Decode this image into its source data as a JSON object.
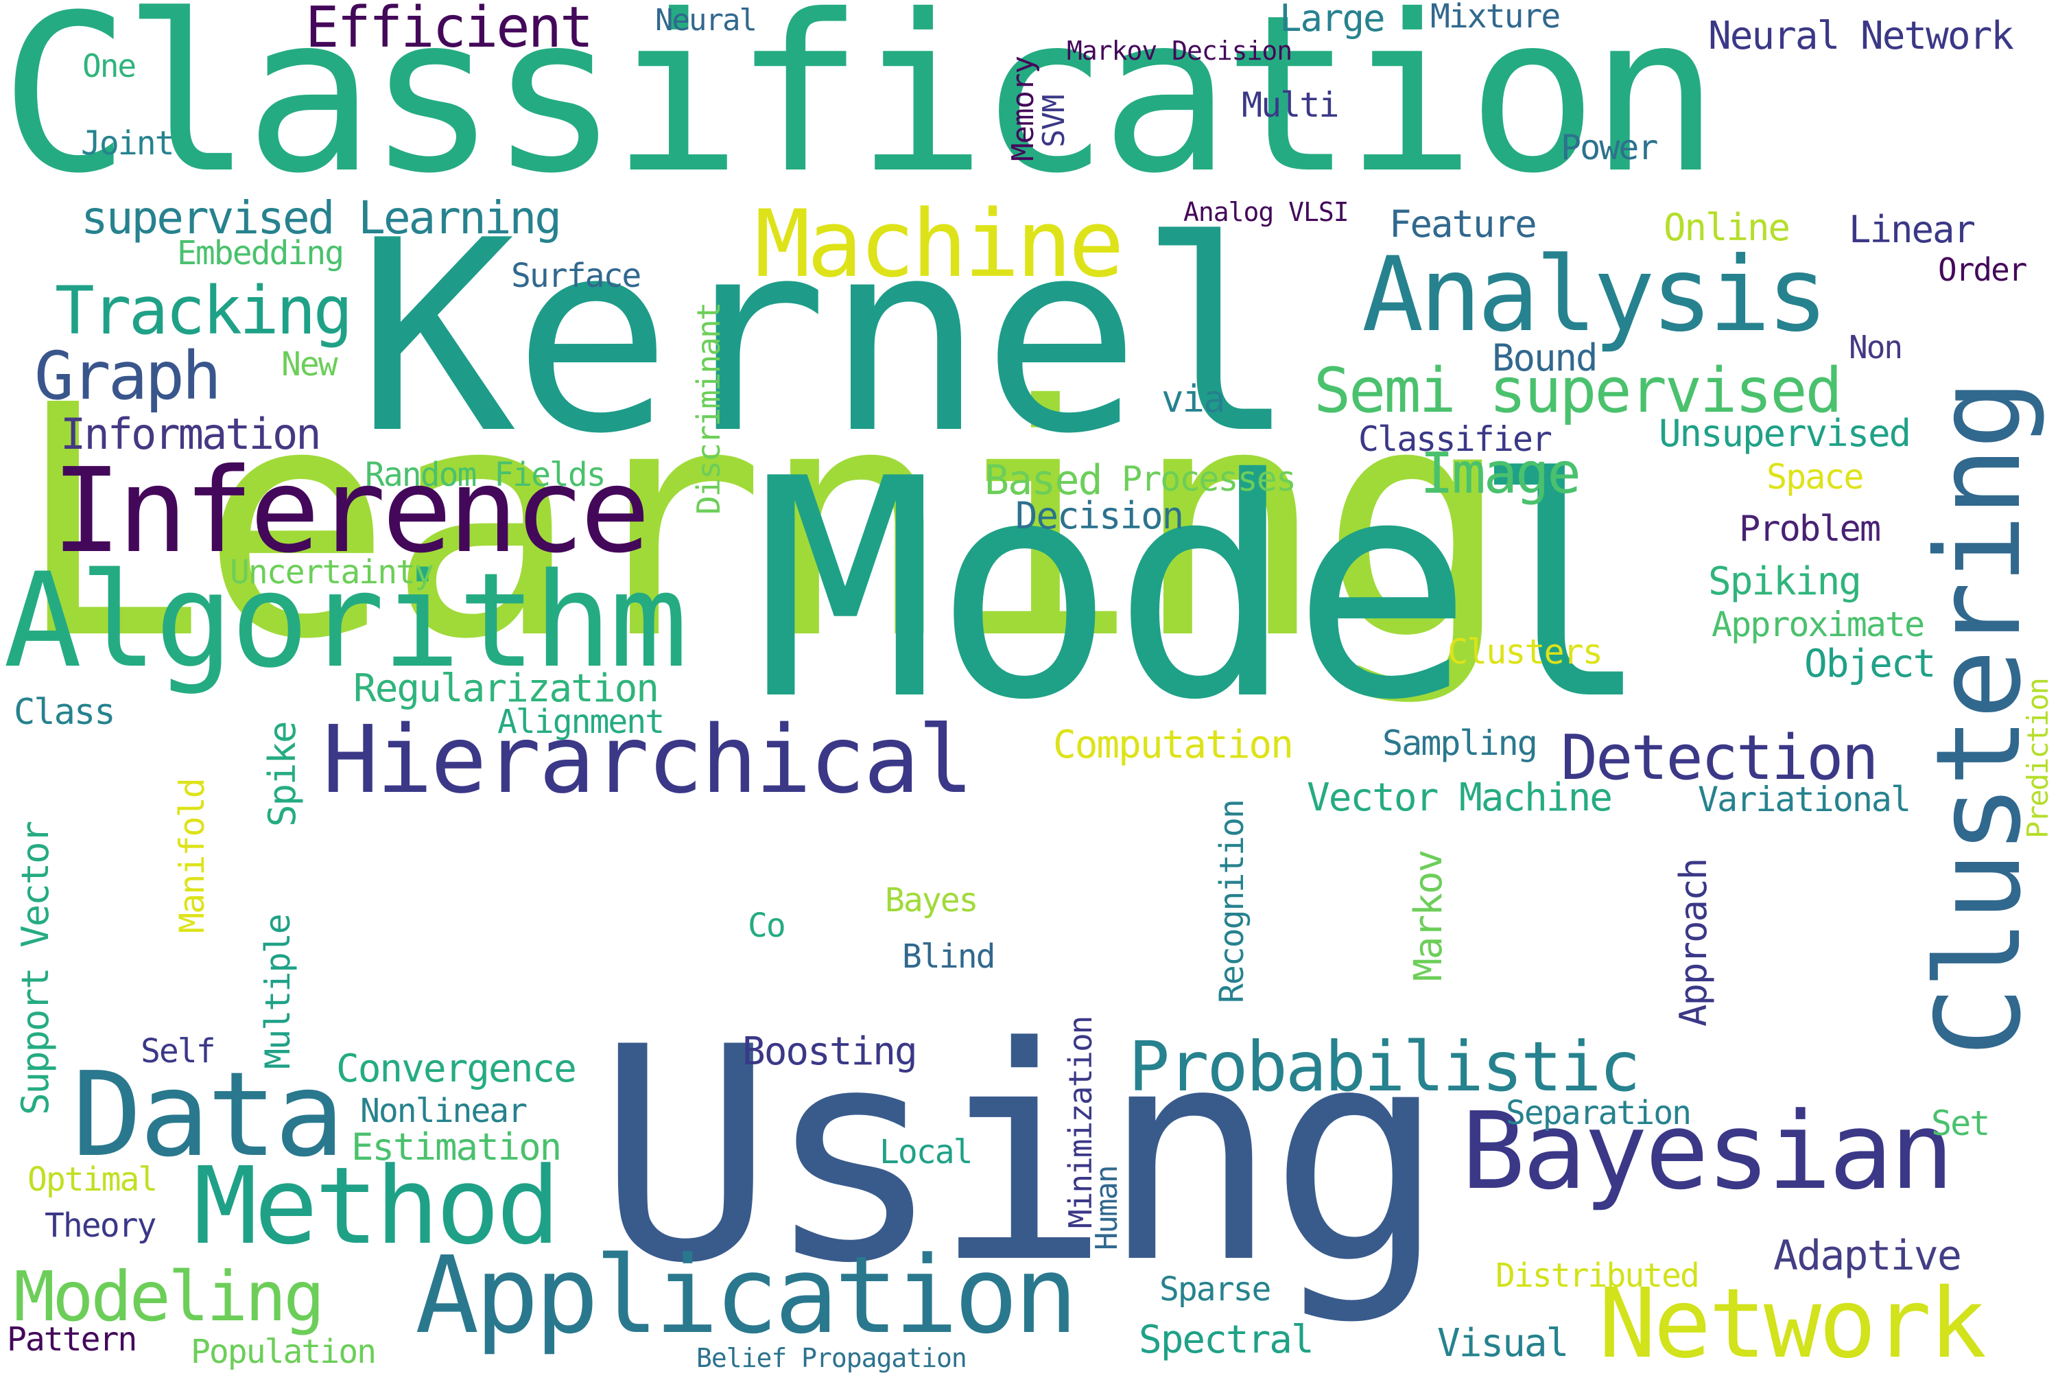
{
  "palette": {
    "dark_purple": "#44085a",
    "indigo": "#3b3887",
    "blue": "#395b8c",
    "slate": "#31688e",
    "teal": "#26828e",
    "green_teal": "#1fa187",
    "green": "#2fb47c",
    "light_green": "#6cce59",
    "lime": "#a0da39",
    "yellow": "#dde318"
  },
  "words": [
    {
      "text": "Learning",
      "color": "#a0da39"
    },
    {
      "text": "Model",
      "color": "#1fa187"
    },
    {
      "text": "Using",
      "color": "#395b8c"
    },
    {
      "text": "Kernel",
      "color": "#1e9c89"
    },
    {
      "text": "Classification",
      "color": "#25ab82"
    },
    {
      "text": "Algorithm",
      "color": "#25ab82"
    },
    {
      "text": "Inference",
      "color": "#44085a"
    },
    {
      "text": "Clustering",
      "color": "#31688e"
    },
    {
      "text": "Hierarchical",
      "color": "#3b3887"
    },
    {
      "text": "Data",
      "color": "#2a788e"
    },
    {
      "text": "Bayesian",
      "color": "#3b3887"
    },
    {
      "text": "Application",
      "color": "#2a788e"
    },
    {
      "text": "Method",
      "color": "#1fa187"
    },
    {
      "text": "Network",
      "color": "#d2e21b"
    },
    {
      "text": "Analysis",
      "color": "#26828e"
    },
    {
      "text": "Machine",
      "color": "#dde318"
    },
    {
      "text": "Probabilistic",
      "color": "#26828e"
    },
    {
      "text": "Semi supervised",
      "color": "#4ac16d"
    },
    {
      "text": "Detection",
      "color": "#3b3887"
    },
    {
      "text": "Modeling",
      "color": "#6cce59"
    },
    {
      "text": "Tracking",
      "color": "#1fa187"
    },
    {
      "text": "Graph",
      "color": "#39568c"
    },
    {
      "text": "Efficient",
      "color": "#44085a"
    },
    {
      "text": "Image",
      "color": "#4ac16d"
    },
    {
      "text": "supervised Learning",
      "color": "#26828e"
    },
    {
      "text": "Information",
      "color": "#443983"
    },
    {
      "text": "Regularization",
      "color": "#2fb47c"
    },
    {
      "text": "Computation",
      "color": "#dde318"
    },
    {
      "text": "Vector Machine",
      "color": "#25ab82"
    },
    {
      "text": "Convergence",
      "color": "#25ab82"
    },
    {
      "text": "Boosting",
      "color": "#3b3887"
    },
    {
      "text": "Adaptive",
      "color": "#433e85"
    },
    {
      "text": "Spectral",
      "color": "#1fa187"
    },
    {
      "text": "Visual",
      "color": "#26828e"
    },
    {
      "text": "Estimation",
      "color": "#4ac16d"
    },
    {
      "text": "Nonlinear",
      "color": "#26828e"
    },
    {
      "text": "Decision",
      "color": "#2c728e"
    },
    {
      "text": "Spiking",
      "color": "#2fb47c"
    },
    {
      "text": "Approximate",
      "color": "#4ac16d"
    },
    {
      "text": "Object",
      "color": "#1fa187"
    },
    {
      "text": "Problem",
      "color": "#482173"
    },
    {
      "text": "Variational",
      "color": "#26828e"
    },
    {
      "text": "Sampling",
      "color": "#2a788e"
    },
    {
      "text": "Clusters",
      "color": "#dde318"
    },
    {
      "text": "Processes",
      "color": "#6cce59"
    },
    {
      "text": "Based",
      "color": "#6cce59"
    },
    {
      "text": "Unsupervised",
      "color": "#1fa187"
    },
    {
      "text": "Classifier",
      "color": "#3b3887"
    },
    {
      "text": "Space",
      "color": "#dde318"
    },
    {
      "text": "Bound",
      "color": "#31688e"
    },
    {
      "text": "Non",
      "color": "#443983"
    },
    {
      "text": "via",
      "color": "#26828e"
    },
    {
      "text": "Feature",
      "color": "#31688e"
    },
    {
      "text": "Online",
      "color": "#b5de2b"
    },
    {
      "text": "Linear",
      "color": "#3b3887"
    },
    {
      "text": "Order",
      "color": "#44085a"
    },
    {
      "text": "Power",
      "color": "#2c728e"
    },
    {
      "text": "Multi",
      "color": "#3b3887"
    },
    {
      "text": "Large",
      "color": "#26828e"
    },
    {
      "text": "Mixture",
      "color": "#31688e"
    },
    {
      "text": "Neural Network",
      "color": "#3b3887"
    },
    {
      "text": "Neural",
      "color": "#31688e"
    },
    {
      "text": "Markov Decision",
      "color": "#44085a"
    },
    {
      "text": "Analog VLSI",
      "color": "#44085a"
    },
    {
      "text": "One",
      "color": "#2fb47c"
    },
    {
      "text": "Joint",
      "color": "#26828e"
    },
    {
      "text": "Embedding",
      "color": "#4ac16d"
    },
    {
      "text": "Surface",
      "color": "#31688e"
    },
    {
      "text": "New",
      "color": "#6cce59"
    },
    {
      "text": "Random Fields",
      "color": "#4ac16d"
    },
    {
      "text": "Uncertainty",
      "color": "#6cce59"
    },
    {
      "text": "Alignment",
      "color": "#25ab82"
    },
    {
      "text": "Class",
      "color": "#26828e"
    },
    {
      "text": "Self",
      "color": "#3b3887"
    },
    {
      "text": "Optimal",
      "color": "#c2df23"
    },
    {
      "text": "Theory",
      "color": "#3b3887"
    },
    {
      "text": "Pattern",
      "color": "#44085a"
    },
    {
      "text": "Population",
      "color": "#6cce59"
    },
    {
      "text": "Belief Propagation",
      "color": "#2c728e"
    },
    {
      "text": "Sparse",
      "color": "#26828e"
    },
    {
      "text": "Distributed",
      "color": "#d2e21b"
    },
    {
      "text": "Separation",
      "color": "#26828e"
    },
    {
      "text": "Set",
      "color": "#4ac16d"
    },
    {
      "text": "Local",
      "color": "#1fa187"
    },
    {
      "text": "Blind",
      "color": "#31688e"
    },
    {
      "text": "Co",
      "color": "#25ab82"
    },
    {
      "text": "Bayes",
      "color": "#a0da39"
    },
    {
      "text": "Memory",
      "color": "#44085a"
    },
    {
      "text": "SVM",
      "color": "#3b3887"
    },
    {
      "text": "Discriminant",
      "color": "#6cce59"
    },
    {
      "text": "Support Vector",
      "color": "#25ab82"
    },
    {
      "text": "Manifold",
      "color": "#dde318"
    },
    {
      "text": "Spike",
      "color": "#25ab82"
    },
    {
      "text": "Multiple",
      "color": "#1fa187"
    },
    {
      "text": "Markov",
      "color": "#6cce59"
    },
    {
      "text": "Recognition",
      "color": "#26828e"
    },
    {
      "text": "Approach",
      "color": "#3b3887"
    },
    {
      "text": "Minimization",
      "color": "#3b3887"
    },
    {
      "text": "Human",
      "color": "#31688e"
    },
    {
      "text": "Prediction",
      "color": "#b5de2b"
    }
  ]
}
